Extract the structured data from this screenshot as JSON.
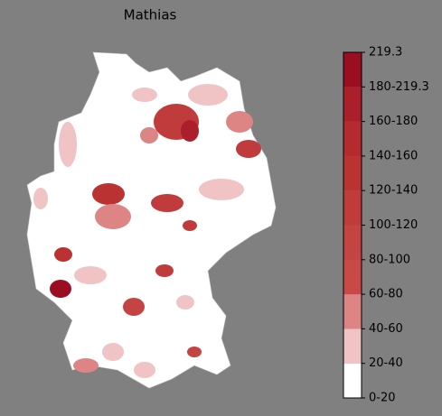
{
  "title": "Mathias",
  "colorbar": {
    "labels": [
      "0-20",
      "20-40",
      "40-60",
      "60-80",
      "80-100",
      "100-120",
      "120-140",
      "140-160",
      "160-180",
      "180-219.3",
      "219.3"
    ],
    "colors": [
      "#ffffff",
      "#f0c4c4",
      "#dd8585",
      "#c94848",
      "#c44343",
      "#c03b3b",
      "#bb3232",
      "#b42a2e",
      "#aa1f2a",
      "#9b0e22"
    ]
  }
}
